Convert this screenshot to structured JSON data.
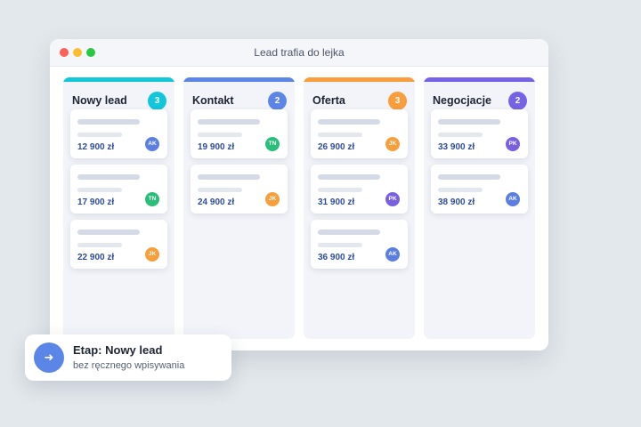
{
  "window": {
    "title": "Lead trafia do lejka"
  },
  "columns": [
    {
      "title": "Nowy lead",
      "count": "3",
      "color": "#12c6dc",
      "cards": [
        {
          "price": "12 900 zł",
          "initials": "AK",
          "avatar_color": "#5b7fe0"
        },
        {
          "price": "17 900 zł",
          "initials": "TN",
          "avatar_color": "#29bf78"
        },
        {
          "price": "22 900 zł",
          "initials": "JK",
          "avatar_color": "#f7a03b"
        }
      ]
    },
    {
      "title": "Kontakt",
      "count": "2",
      "color": "#5b85e6",
      "cards": [
        {
          "price": "19 900 zł",
          "initials": "TN",
          "avatar_color": "#29bf78"
        },
        {
          "price": "24 900 zł",
          "initials": "JK",
          "avatar_color": "#f7a03b"
        }
      ]
    },
    {
      "title": "Oferta",
      "count": "3",
      "color": "#f99d3d",
      "cards": [
        {
          "price": "26 900 zł",
          "initials": "JK",
          "avatar_color": "#f7a03b"
        },
        {
          "price": "31 900 zł",
          "initials": "PK",
          "avatar_color": "#7a5fe0"
        },
        {
          "price": "36 900 zł",
          "initials": "AK",
          "avatar_color": "#5b7fe0"
        }
      ]
    },
    {
      "title": "Negocjacje",
      "count": "2",
      "color": "#7562e6",
      "cards": [
        {
          "price": "33 900 zł",
          "initials": "PK",
          "avatar_color": "#7a5fe0"
        },
        {
          "price": "38 900 zł",
          "initials": "AK",
          "avatar_color": "#5b7fe0"
        }
      ]
    }
  ],
  "toast": {
    "title": "Etap: Nowy lead",
    "subtitle": "bez ręcznego wpisywania",
    "icon": "arrow-right-icon",
    "color": "#5b85e6"
  }
}
